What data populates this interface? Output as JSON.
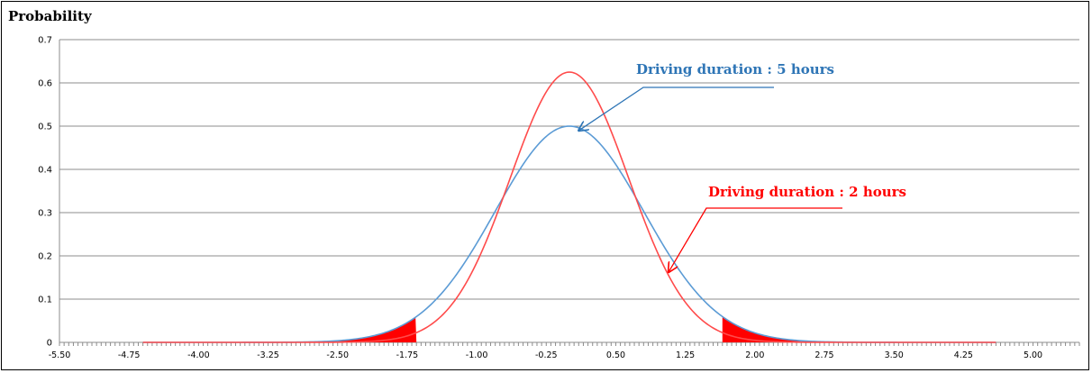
{
  "chart_data": {
    "type": "line",
    "ylabel": "Probability",
    "xlim": [
      -5.5,
      5.5
    ],
    "ylim": [
      0,
      0.7
    ],
    "y_ticks": [
      "0",
      "0.1",
      "0.2",
      "0.3",
      "0.4",
      "0.5",
      "0.6",
      "0.7"
    ],
    "x_ticks": [
      "-5.50",
      "-4.75",
      "-4.00",
      "-3.25",
      "-2.50",
      "-1.75",
      "-1.00",
      "-0.25",
      "0.50",
      "1.25",
      "2.00",
      "2.75",
      "3.50",
      "4.25",
      "5.00"
    ],
    "grid": "horizontal",
    "series": [
      {
        "name": "Driving duration : 5 hours",
        "color": "#5b9bd5",
        "mean": 0.0,
        "sd": 0.8,
        "peak": 0.5
      },
      {
        "name": "Driving duration : 2 hours",
        "color": "#ff4b4b",
        "mean": 0.0,
        "sd": 0.64,
        "peak": 0.625
      }
    ],
    "shaded_tails": {
      "color": "#ff0000",
      "left_upper_x": -1.65,
      "right_lower_x": 1.65
    },
    "annotations": [
      {
        "text": "Driving duration : 5 hours",
        "color": "#2e75b6",
        "points_to_x": 0.1
      },
      {
        "text": "Driving duration : 2 hours",
        "color": "#ff0000",
        "points_to_x": 1.05
      }
    ]
  }
}
